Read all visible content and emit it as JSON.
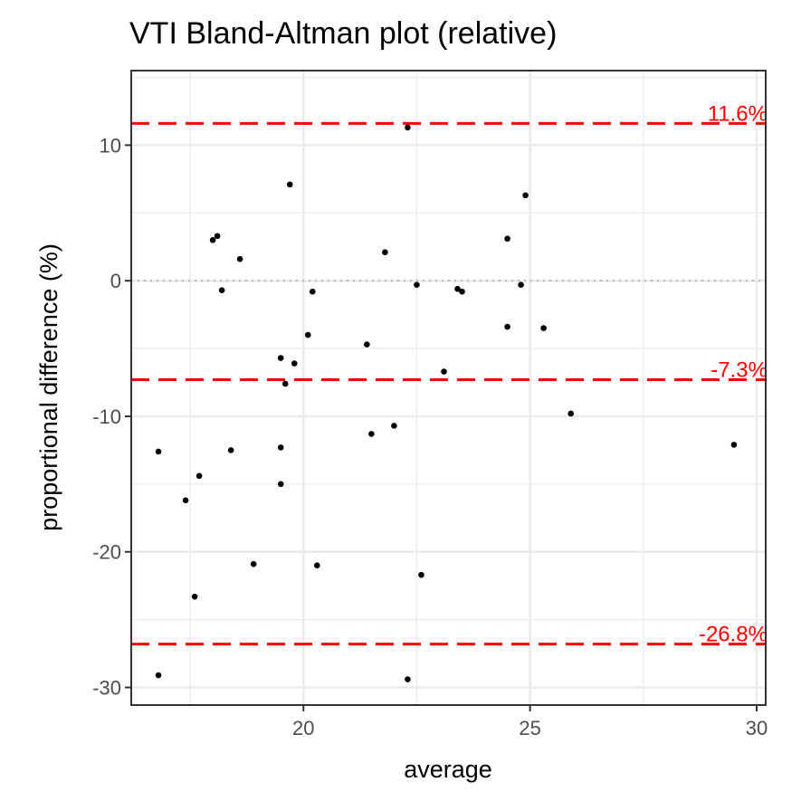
{
  "chart_data": {
    "type": "scatter",
    "title": "VTI   Bland-Altman plot (relative)",
    "xlabel": "average",
    "ylabel": "proportional difference (%)",
    "xlim": [
      16.2,
      30.2
    ],
    "ylim": [
      -31.3,
      15.5
    ],
    "x_ticks": [
      20,
      25,
      30
    ],
    "x_minor_ticks": [
      17.5,
      22.5,
      27.5
    ],
    "y_ticks": [
      -30,
      -20,
      -10,
      0,
      10
    ],
    "y_minor_ticks": [
      -25,
      -15,
      -5,
      5,
      15
    ],
    "grid": true,
    "zero_line": {
      "value": 0,
      "color": "#bfbfbf",
      "style": "dotted"
    },
    "reference_lines": [
      {
        "value": 11.6,
        "label": "11.6%",
        "color": "#ff0000",
        "style": "dashed"
      },
      {
        "value": -7.3,
        "label": "-7.3%",
        "color": "#ff0000",
        "style": "dashed"
      },
      {
        "value": -26.8,
        "label": "-26.8%",
        "color": "#ff0000",
        "style": "dashed"
      }
    ],
    "points": [
      {
        "x": 16.8,
        "y": -12.6
      },
      {
        "x": 16.8,
        "y": -29.1
      },
      {
        "x": 17.4,
        "y": -16.2
      },
      {
        "x": 17.6,
        "y": -23.3
      },
      {
        "x": 17.7,
        "y": -14.4
      },
      {
        "x": 18.0,
        "y": 3.0
      },
      {
        "x": 18.1,
        "y": 3.3
      },
      {
        "x": 18.2,
        "y": -0.7
      },
      {
        "x": 18.4,
        "y": -12.5
      },
      {
        "x": 18.6,
        "y": 1.6
      },
      {
        "x": 18.9,
        "y": -20.9
      },
      {
        "x": 19.5,
        "y": -5.7
      },
      {
        "x": 19.5,
        "y": -12.3
      },
      {
        "x": 19.5,
        "y": -15.0
      },
      {
        "x": 19.6,
        "y": -7.6
      },
      {
        "x": 19.7,
        "y": 7.1
      },
      {
        "x": 19.8,
        "y": -6.1
      },
      {
        "x": 20.1,
        "y": -4.0
      },
      {
        "x": 20.2,
        "y": -0.8
      },
      {
        "x": 20.3,
        "y": -21.0
      },
      {
        "x": 21.4,
        "y": -4.7
      },
      {
        "x": 21.5,
        "y": -11.3
      },
      {
        "x": 21.8,
        "y": 2.1
      },
      {
        "x": 22.0,
        "y": -10.7
      },
      {
        "x": 22.3,
        "y": 11.3
      },
      {
        "x": 22.3,
        "y": -29.4
      },
      {
        "x": 22.5,
        "y": -0.3
      },
      {
        "x": 22.6,
        "y": -21.7
      },
      {
        "x": 23.1,
        "y": -6.7
      },
      {
        "x": 23.4,
        "y": -0.6
      },
      {
        "x": 23.5,
        "y": -0.8
      },
      {
        "x": 24.5,
        "y": 3.1
      },
      {
        "x": 24.5,
        "y": -3.4
      },
      {
        "x": 24.8,
        "y": -0.3
      },
      {
        "x": 24.9,
        "y": 6.3
      },
      {
        "x": 25.3,
        "y": -3.5
      },
      {
        "x": 25.9,
        "y": -9.8
      },
      {
        "x": 29.5,
        "y": -12.1
      }
    ]
  }
}
